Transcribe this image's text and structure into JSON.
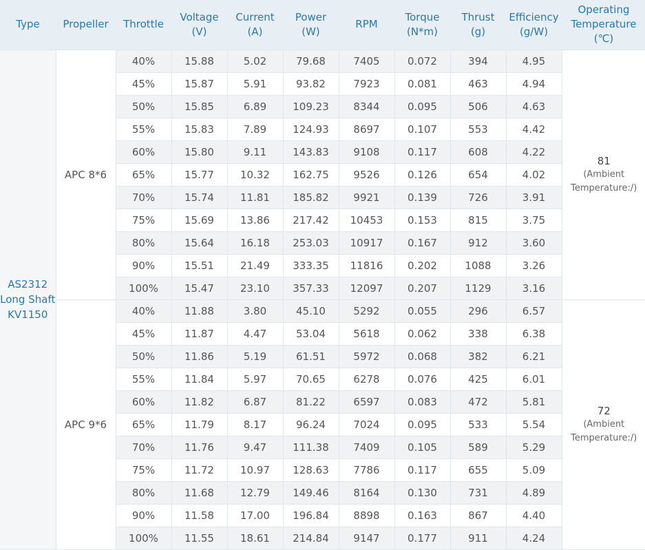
{
  "headers": {
    "type": "Type",
    "propeller": "Propeller",
    "throttle": "Throttle",
    "voltage": [
      "Voltage",
      "(V)"
    ],
    "current": [
      "Current",
      "(A)"
    ],
    "power": [
      "Power",
      "(W)"
    ],
    "rpm": "RPM",
    "torque": [
      "Torque",
      "(N*m)"
    ],
    "thrust": [
      "Thrust",
      "(g)"
    ],
    "efficiency": [
      "Efficiency",
      "(g/W)"
    ],
    "temperature": [
      "Operating",
      "Temperature",
      "(℃)"
    ]
  },
  "motor": {
    "lines": [
      "AS2312",
      "Long Shaft",
      "KV1150"
    ]
  },
  "groups": [
    {
      "propeller": "APC 8*6",
      "temp_value": "81",
      "temp_note": [
        "(Ambient",
        "Temperature:/)"
      ],
      "rows": [
        [
          "40%",
          "15.88",
          "5.02",
          "79.68",
          "7405",
          "0.072",
          "394",
          "4.95"
        ],
        [
          "45%",
          "15.87",
          "5.91",
          "93.82",
          "7923",
          "0.081",
          "463",
          "4.94"
        ],
        [
          "50%",
          "15.85",
          "6.89",
          "109.23",
          "8344",
          "0.095",
          "506",
          "4.63"
        ],
        [
          "55%",
          "15.83",
          "7.89",
          "124.93",
          "8697",
          "0.107",
          "553",
          "4.42"
        ],
        [
          "60%",
          "15.80",
          "9.11",
          "143.83",
          "9108",
          "0.117",
          "608",
          "4.22"
        ],
        [
          "65%",
          "15.77",
          "10.32",
          "162.75",
          "9526",
          "0.126",
          "654",
          "4.02"
        ],
        [
          "70%",
          "15.74",
          "11.81",
          "185.82",
          "9921",
          "0.139",
          "726",
          "3.91"
        ],
        [
          "75%",
          "15.69",
          "13.86",
          "217.42",
          "10453",
          "0.153",
          "815",
          "3.75"
        ],
        [
          "80%",
          "15.64",
          "16.18",
          "253.03",
          "10917",
          "0.167",
          "912",
          "3.60"
        ],
        [
          "90%",
          "15.51",
          "21.49",
          "333.35",
          "11816",
          "0.202",
          "1088",
          "3.26"
        ],
        [
          "100%",
          "15.47",
          "23.10",
          "357.33",
          "12097",
          "0.207",
          "1129",
          "3.16"
        ]
      ]
    },
    {
      "propeller": "APC 9*6",
      "temp_value": "72",
      "temp_note": [
        "(Ambient",
        "Temperature:/)"
      ],
      "rows": [
        [
          "40%",
          "11.88",
          "3.80",
          "45.10",
          "5292",
          "0.055",
          "296",
          "6.57"
        ],
        [
          "45%",
          "11.87",
          "4.47",
          "53.04",
          "5618",
          "0.062",
          "338",
          "6.38"
        ],
        [
          "50%",
          "11.86",
          "5.19",
          "61.51",
          "5972",
          "0.068",
          "382",
          "6.21"
        ],
        [
          "55%",
          "11.84",
          "5.97",
          "70.65",
          "6278",
          "0.076",
          "425",
          "6.01"
        ],
        [
          "60%",
          "11.82",
          "6.87",
          "81.22",
          "6597",
          "0.083",
          "472",
          "5.81"
        ],
        [
          "65%",
          "11.79",
          "8.17",
          "96.24",
          "7024",
          "0.095",
          "533",
          "5.54"
        ],
        [
          "70%",
          "11.76",
          "9.47",
          "111.38",
          "7409",
          "0.105",
          "589",
          "5.29"
        ],
        [
          "75%",
          "11.72",
          "10.97",
          "128.63",
          "7786",
          "0.117",
          "655",
          "5.09"
        ],
        [
          "80%",
          "11.68",
          "12.79",
          "149.46",
          "8164",
          "0.130",
          "731",
          "4.89"
        ],
        [
          "90%",
          "11.58",
          "17.00",
          "196.84",
          "8898",
          "0.163",
          "867",
          "4.40"
        ],
        [
          "100%",
          "11.55",
          "18.61",
          "214.84",
          "9147",
          "0.177",
          "911",
          "4.24"
        ]
      ]
    }
  ]
}
